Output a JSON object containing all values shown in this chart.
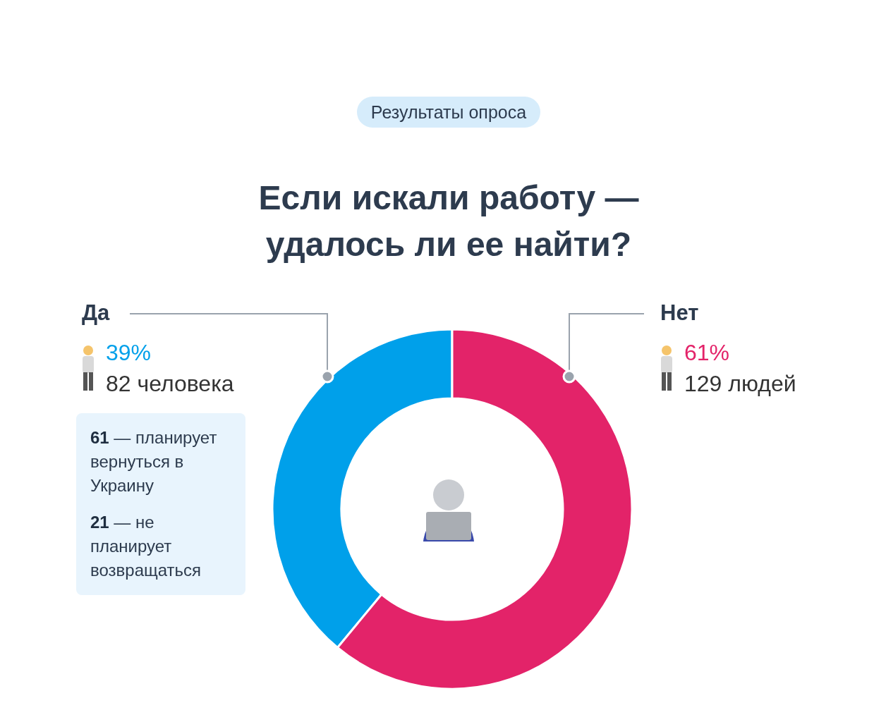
{
  "chart_data": {
    "type": "donut",
    "title": "Если искали работу —\nудалось ли ее найти?",
    "subtitle": "Результаты опроса",
    "categories": [
      "Да",
      "Нет"
    ],
    "values": [
      39,
      61
    ],
    "colors": [
      "#00a0ea",
      "#e32369"
    ],
    "value_labels": [
      "39%",
      "61%"
    ],
    "annotations": [
      {
        "text": "82 человека",
        "x": "Да"
      },
      {
        "text": "129 людей",
        "x": "Нет"
      },
      "61 — планирует вернуться в Украину",
      "21 — не планирует возвращаться"
    ]
  }
}
